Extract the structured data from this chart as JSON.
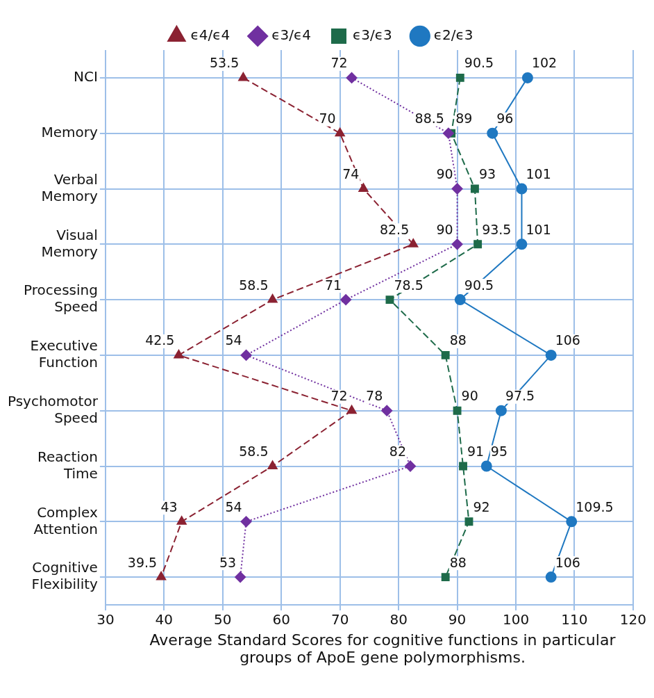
{
  "chart_data": {
    "type": "line",
    "orientation": "horizontal",
    "annotations": [
      "Average Standard Scores for cognitive functions in particular groups of ApoE gene polymorphisms."
    ],
    "categories": [
      "NCI",
      "Memory",
      "Verbal Memory",
      "Visual Memory",
      "Processing Speed",
      "Executive Function",
      "Psychomotor Speed",
      "Reaction Time",
      "Complex Attention",
      "Cognitive Flexibility"
    ],
    "series": [
      {
        "name": "ϵ4/ϵ4",
        "color": "#8b2232",
        "marker": "triangle",
        "line_style": "dashed",
        "values": [
          53.5,
          70,
          74,
          82.5,
          58.5,
          42.5,
          72,
          58.5,
          43,
          39.5
        ]
      },
      {
        "name": "ϵ3/ϵ4",
        "color": "#7030a0",
        "marker": "diamond",
        "line_style": "dotted",
        "values": [
          72,
          88.5,
          90,
          90,
          71,
          54,
          78,
          82,
          54,
          53
        ]
      },
      {
        "name": "ϵ3/ϵ3",
        "color": "#1e6b4a",
        "marker": "square",
        "line_style": "dashed",
        "values": [
          90.5,
          89,
          93,
          93.5,
          78.5,
          88,
          90,
          91,
          92,
          88
        ]
      },
      {
        "name": "ϵ2/ϵ3",
        "color": "#1f78c1",
        "marker": "circle",
        "line_style": "solid",
        "values": [
          102,
          96,
          101,
          101,
          90.5,
          106,
          97.5,
          95,
          109.5,
          106
        ]
      }
    ],
    "xlim": [
      30,
      120
    ],
    "xticks": [
      30,
      40,
      50,
      60,
      70,
      80,
      90,
      100,
      110,
      120
    ],
    "grid": true,
    "legend": "top",
    "data_labels": true
  }
}
